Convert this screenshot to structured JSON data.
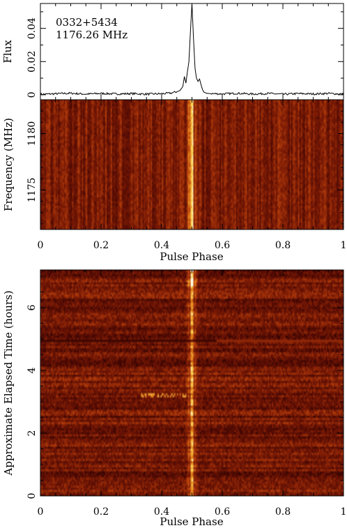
{
  "chart_data": [
    {
      "type": "line",
      "annotation_lines": [
        "0332+5434",
        "1176.26 MHz"
      ],
      "ylabel": "Flux",
      "xlim": [
        0,
        1
      ],
      "ylim": [
        -0.003,
        0.055
      ],
      "y_ticks": [
        "0",
        "0.02",
        "0.04"
      ],
      "x": [
        0,
        0.05,
        0.1,
        0.15,
        0.2,
        0.25,
        0.3,
        0.35,
        0.4,
        0.43,
        0.45,
        0.46,
        0.47,
        0.475,
        0.48,
        0.485,
        0.49,
        0.495,
        0.5,
        0.505,
        0.51,
        0.515,
        0.52,
        0.525,
        0.53,
        0.535,
        0.54,
        0.55,
        0.6,
        0.65,
        0.7,
        0.75,
        0.8,
        0.85,
        0.9,
        0.95,
        1.0
      ],
      "y": [
        0.0003,
        0.0006,
        0.0009,
        0.0004,
        0.0008,
        0.0005,
        0.0007,
        0.0004,
        0.0006,
        0.001,
        0.0018,
        0.0025,
        0.005,
        0.011,
        0.007,
        0.014,
        0.02,
        0.038,
        0.055,
        0.034,
        0.016,
        0.01,
        0.008,
        0.0095,
        0.006,
        0.003,
        0.0015,
        0.0008,
        0.0005,
        0.0009,
        0.0004,
        0.0008,
        0.0003,
        0.0007,
        0.0005,
        0.0008,
        0.0004
      ],
      "grid": false
    },
    {
      "type": "heatmap",
      "xlabel": "Pulse Phase",
      "ylabel": "Frequency (MHz)",
      "xlim": [
        0,
        1
      ],
      "ylim": [
        1183,
        1171.5
      ],
      "x_ticks": [
        "0",
        "0.2",
        "0.4",
        "0.6",
        "0.8",
        "1"
      ],
      "y_ticks": [
        "1175",
        "1180"
      ],
      "y_tick_values": [
        1175,
        1180
      ],
      "pulse_phase_center": 0.5,
      "colormap": [
        "#0c0000",
        "#4a0803",
        "#7a1a05",
        "#b8400c",
        "#e88a1e",
        "#ffd95a",
        "#fffde8"
      ]
    },
    {
      "type": "heatmap",
      "xlabel": "Pulse Phase",
      "ylabel": "Approximate Elapsed Time (hours)",
      "xlim": [
        0,
        1
      ],
      "ylim": [
        0,
        7.2
      ],
      "x_ticks": [
        "0",
        "0.2",
        "0.4",
        "0.6",
        "0.8",
        "1"
      ],
      "y_ticks": [
        "0",
        "2",
        "4",
        "6"
      ],
      "y_tick_values": [
        0,
        2,
        4,
        6
      ],
      "pulse_phase_center": 0.5,
      "colormap": [
        "#0c0000",
        "#4a0803",
        "#7a1a05",
        "#b8400c",
        "#e88a1e",
        "#ffd95a",
        "#fffde8"
      ]
    }
  ]
}
